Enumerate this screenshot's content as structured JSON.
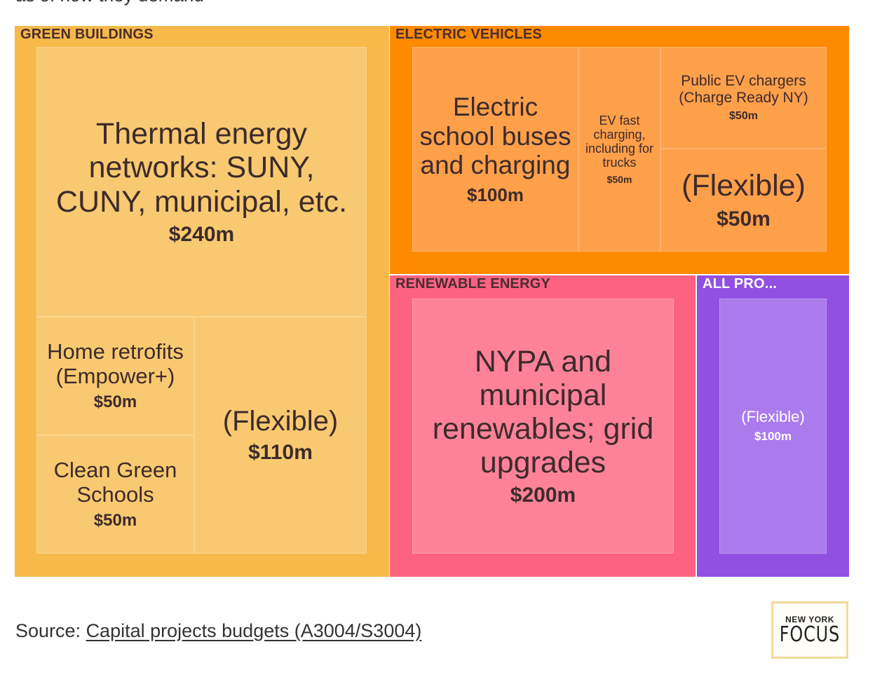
{
  "header_cut": "as of now they demand",
  "chart_data": {
    "type": "treemap",
    "unit": "$m",
    "groups": [
      {
        "name": "GREEN BUILDINGS",
        "color": "#f7b94a",
        "leaf_color": "#f8c970",
        "items": [
          {
            "name": "Thermal energy networks: SUNY, CUNY, municipal, etc.",
            "value": 240,
            "label": "$240m"
          },
          {
            "name": "Home retrofits (Empower+)",
            "value": 50,
            "label": "$50m"
          },
          {
            "name": "Clean Green Schools",
            "value": 50,
            "label": "$50m"
          },
          {
            "name": "(Flexible)",
            "value": 110,
            "label": "$110m"
          }
        ]
      },
      {
        "name": "ELECTRIC VEHICLES",
        "color": "#fe8a00",
        "leaf_color": "#fe9f4a",
        "items": [
          {
            "name": "Electric school buses and charging",
            "value": 100,
            "label": "$100m"
          },
          {
            "name": "EV fast charging, including for trucks",
            "value": 50,
            "label": "$50m"
          },
          {
            "name": "Public EV chargers (Charge Ready NY)",
            "value": 50,
            "label": "$50m"
          },
          {
            "name": "(Flexible)",
            "value": 50,
            "label": "$50m"
          }
        ]
      },
      {
        "name": "RENEWABLE ENERGY",
        "color": "#fe6282",
        "leaf_color": "#fe8297",
        "items": [
          {
            "name": "NYPA and municipal renewables; grid upgrades",
            "value": 200,
            "label": "$200m"
          }
        ]
      },
      {
        "name": "ALL PRO...",
        "color": "#9250e2",
        "leaf_color": "#ab7aec",
        "items": [
          {
            "name": "(Flexible)",
            "value": 100,
            "label": "$100m"
          }
        ]
      }
    ]
  },
  "footer": {
    "source_prefix": "Source: ",
    "source_link": "Capital projects budgets (A3004/S3004)",
    "logo_line1": "NEW YORK",
    "logo_line2": "FOCUS"
  }
}
